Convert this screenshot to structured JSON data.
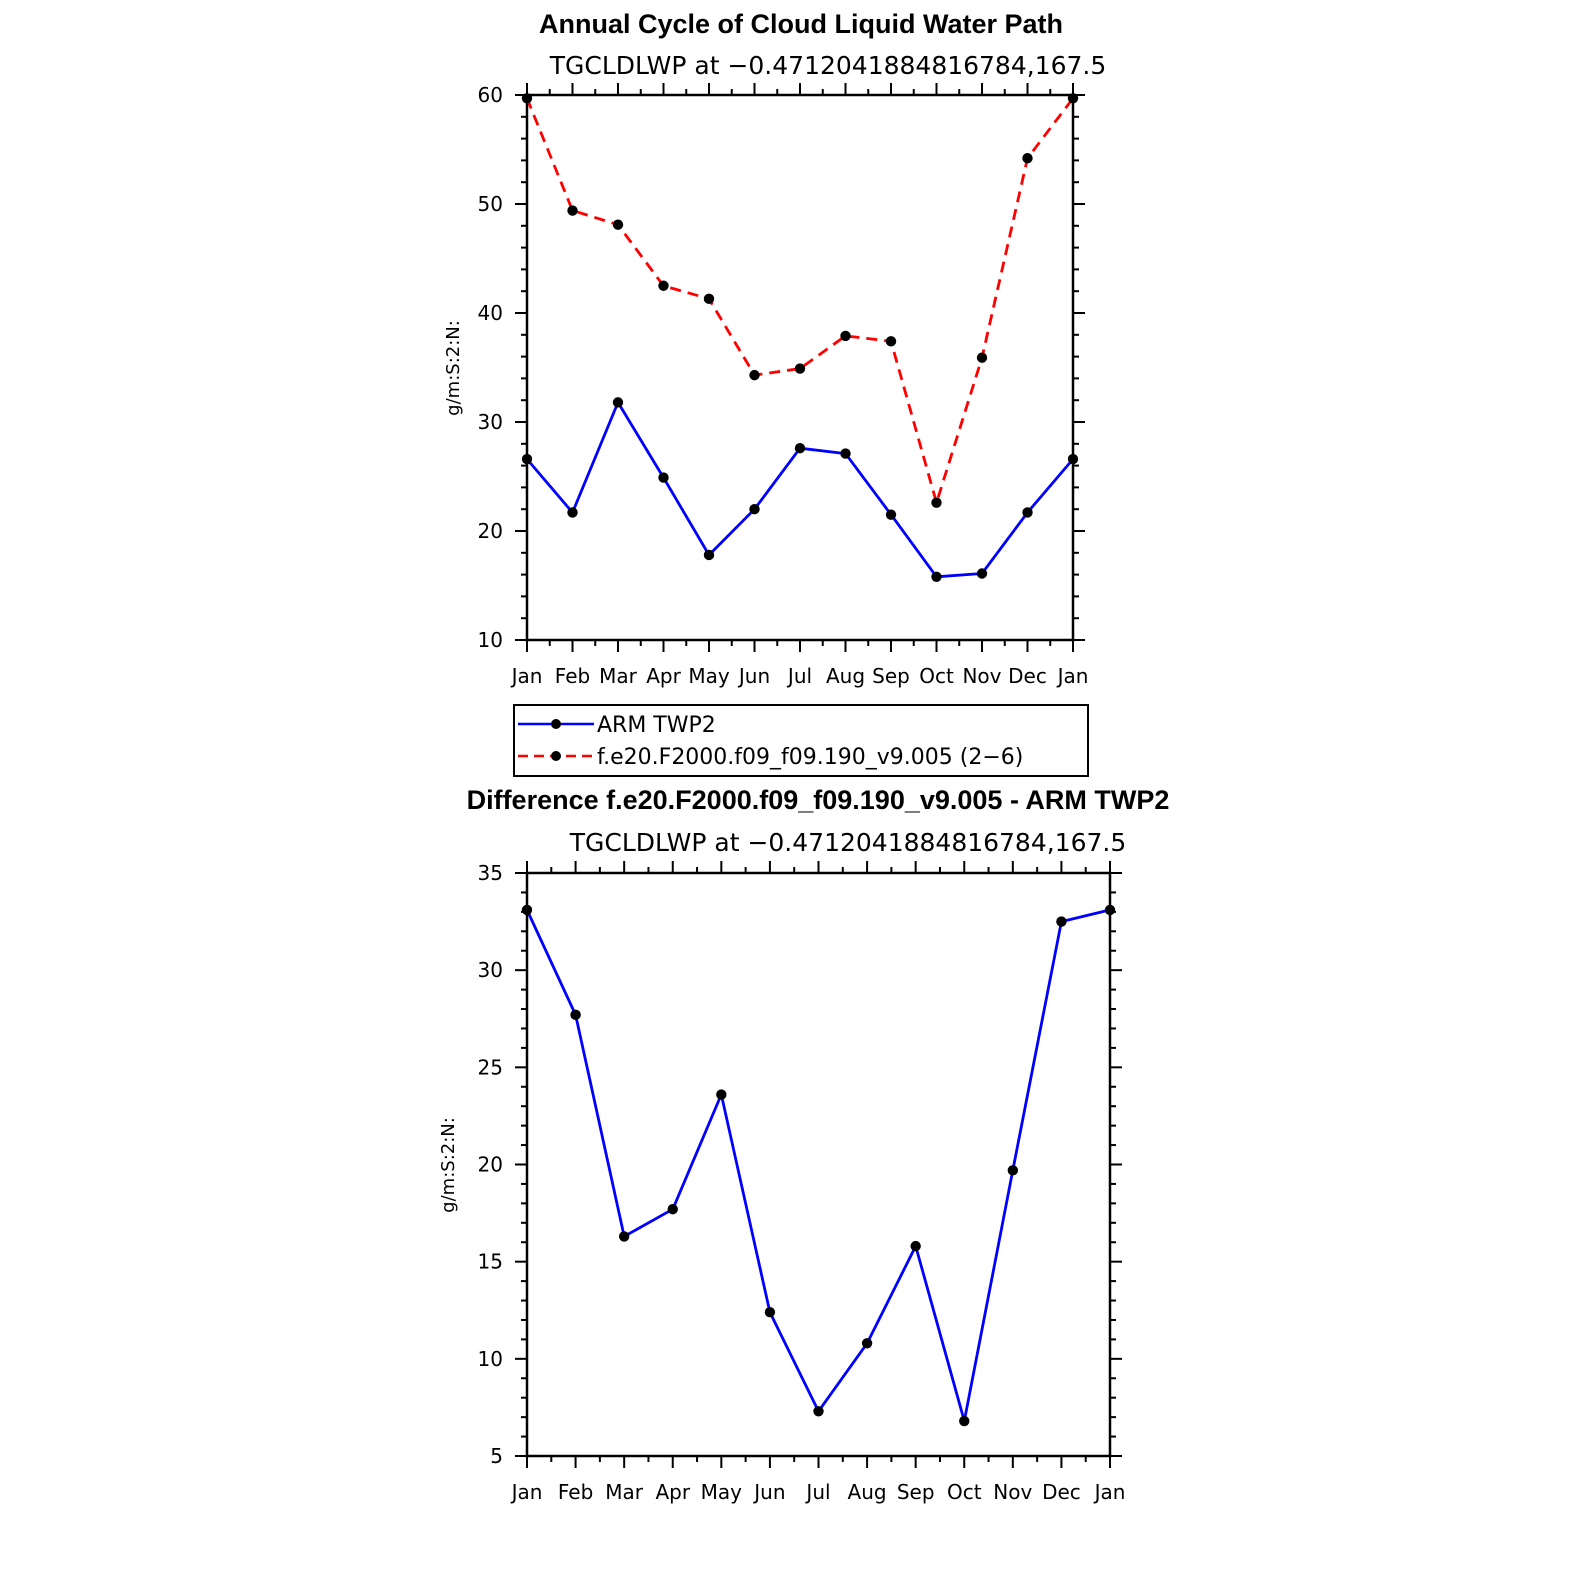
{
  "chart_data": [
    {
      "type": "line",
      "title": "Annual Cycle of Cloud Liquid Water Path",
      "subtitle": "TGCLDLWP at −0.4712041884816784,167.5",
      "ylabel": "g/m:S:2:N:",
      "xlabel": "",
      "categories": [
        "Jan",
        "Feb",
        "Mar",
        "Apr",
        "May",
        "Jun",
        "Jul",
        "Aug",
        "Sep",
        "Oct",
        "Nov",
        "Dec",
        "Jan"
      ],
      "ylim": [
        10,
        60
      ],
      "yticks": [
        10,
        20,
        30,
        40,
        50,
        60
      ],
      "grid": false,
      "legend_position": "bottom",
      "series": [
        {
          "name": "ARM TWP2",
          "color": "#0000ff",
          "dash": "solid",
          "values": [
            26.6,
            21.7,
            31.8,
            24.9,
            17.8,
            22.0,
            27.6,
            27.1,
            21.5,
            15.8,
            16.1,
            21.7,
            26.6
          ]
        },
        {
          "name": "f.e20.F2000.f09_f09.190_v9.005 (2−6)",
          "color": "#ff0000",
          "dash": "dashed",
          "values": [
            59.7,
            49.4,
            48.1,
            42.5,
            41.3,
            34.3,
            34.9,
            37.9,
            37.4,
            22.6,
            35.9,
            54.2,
            59.7
          ]
        }
      ]
    },
    {
      "type": "line",
      "title": "Difference f.e20.F2000.f09_f09.190_v9.005 - ARM TWP2",
      "subtitle": "TGCLDLWP at −0.4712041884816784,167.5",
      "ylabel": "g/m:S:2:N:",
      "xlabel": "",
      "categories": [
        "Jan",
        "Feb",
        "Mar",
        "Apr",
        "May",
        "Jun",
        "Jul",
        "Aug",
        "Sep",
        "Oct",
        "Nov",
        "Dec",
        "Jan"
      ],
      "ylim": [
        5,
        35
      ],
      "yticks": [
        5,
        10,
        15,
        20,
        25,
        30,
        35
      ],
      "grid": false,
      "series": [
        {
          "name": "",
          "color": "#0000ff",
          "dash": "solid",
          "values": [
            33.1,
            27.7,
            16.3,
            17.7,
            23.6,
            12.4,
            7.3,
            10.8,
            15.8,
            6.8,
            19.7,
            32.5,
            33.1
          ]
        }
      ]
    }
  ]
}
